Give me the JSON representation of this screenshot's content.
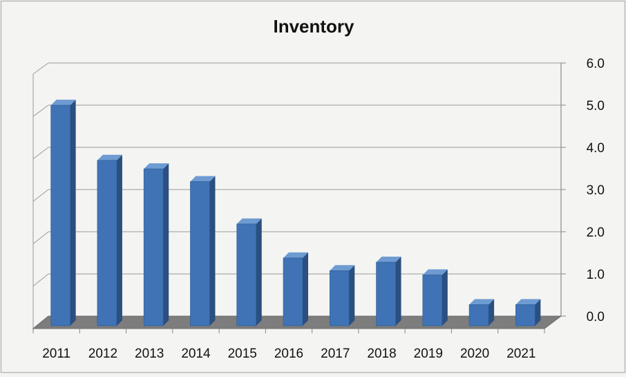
{
  "chart_data": {
    "type": "bar",
    "title": "Inventory",
    "xlabel": "",
    "ylabel": "",
    "categories": [
      "2011",
      "2012",
      "2013",
      "2014",
      "2015",
      "2016",
      "2017",
      "2018",
      "2019",
      "2020",
      "2021"
    ],
    "series": [
      {
        "values": [
          5.2,
          3.9,
          3.7,
          3.4,
          2.4,
          1.6,
          1.3,
          1.5,
          1.2,
          0.5,
          0.5
        ]
      }
    ],
    "ylim": [
      0,
      6
    ],
    "yticks": [
      "0.0",
      "1.0",
      "2.0",
      "3.0",
      "4.0",
      "5.0",
      "6.0"
    ],
    "y_axis_side": "right",
    "grid": true,
    "legend": "none",
    "bar_color": "#3f73b5",
    "bar_side_color": "#2a4f80",
    "bar_top_color": "#6e9bd2",
    "floor_color": "#7d7d7d"
  }
}
